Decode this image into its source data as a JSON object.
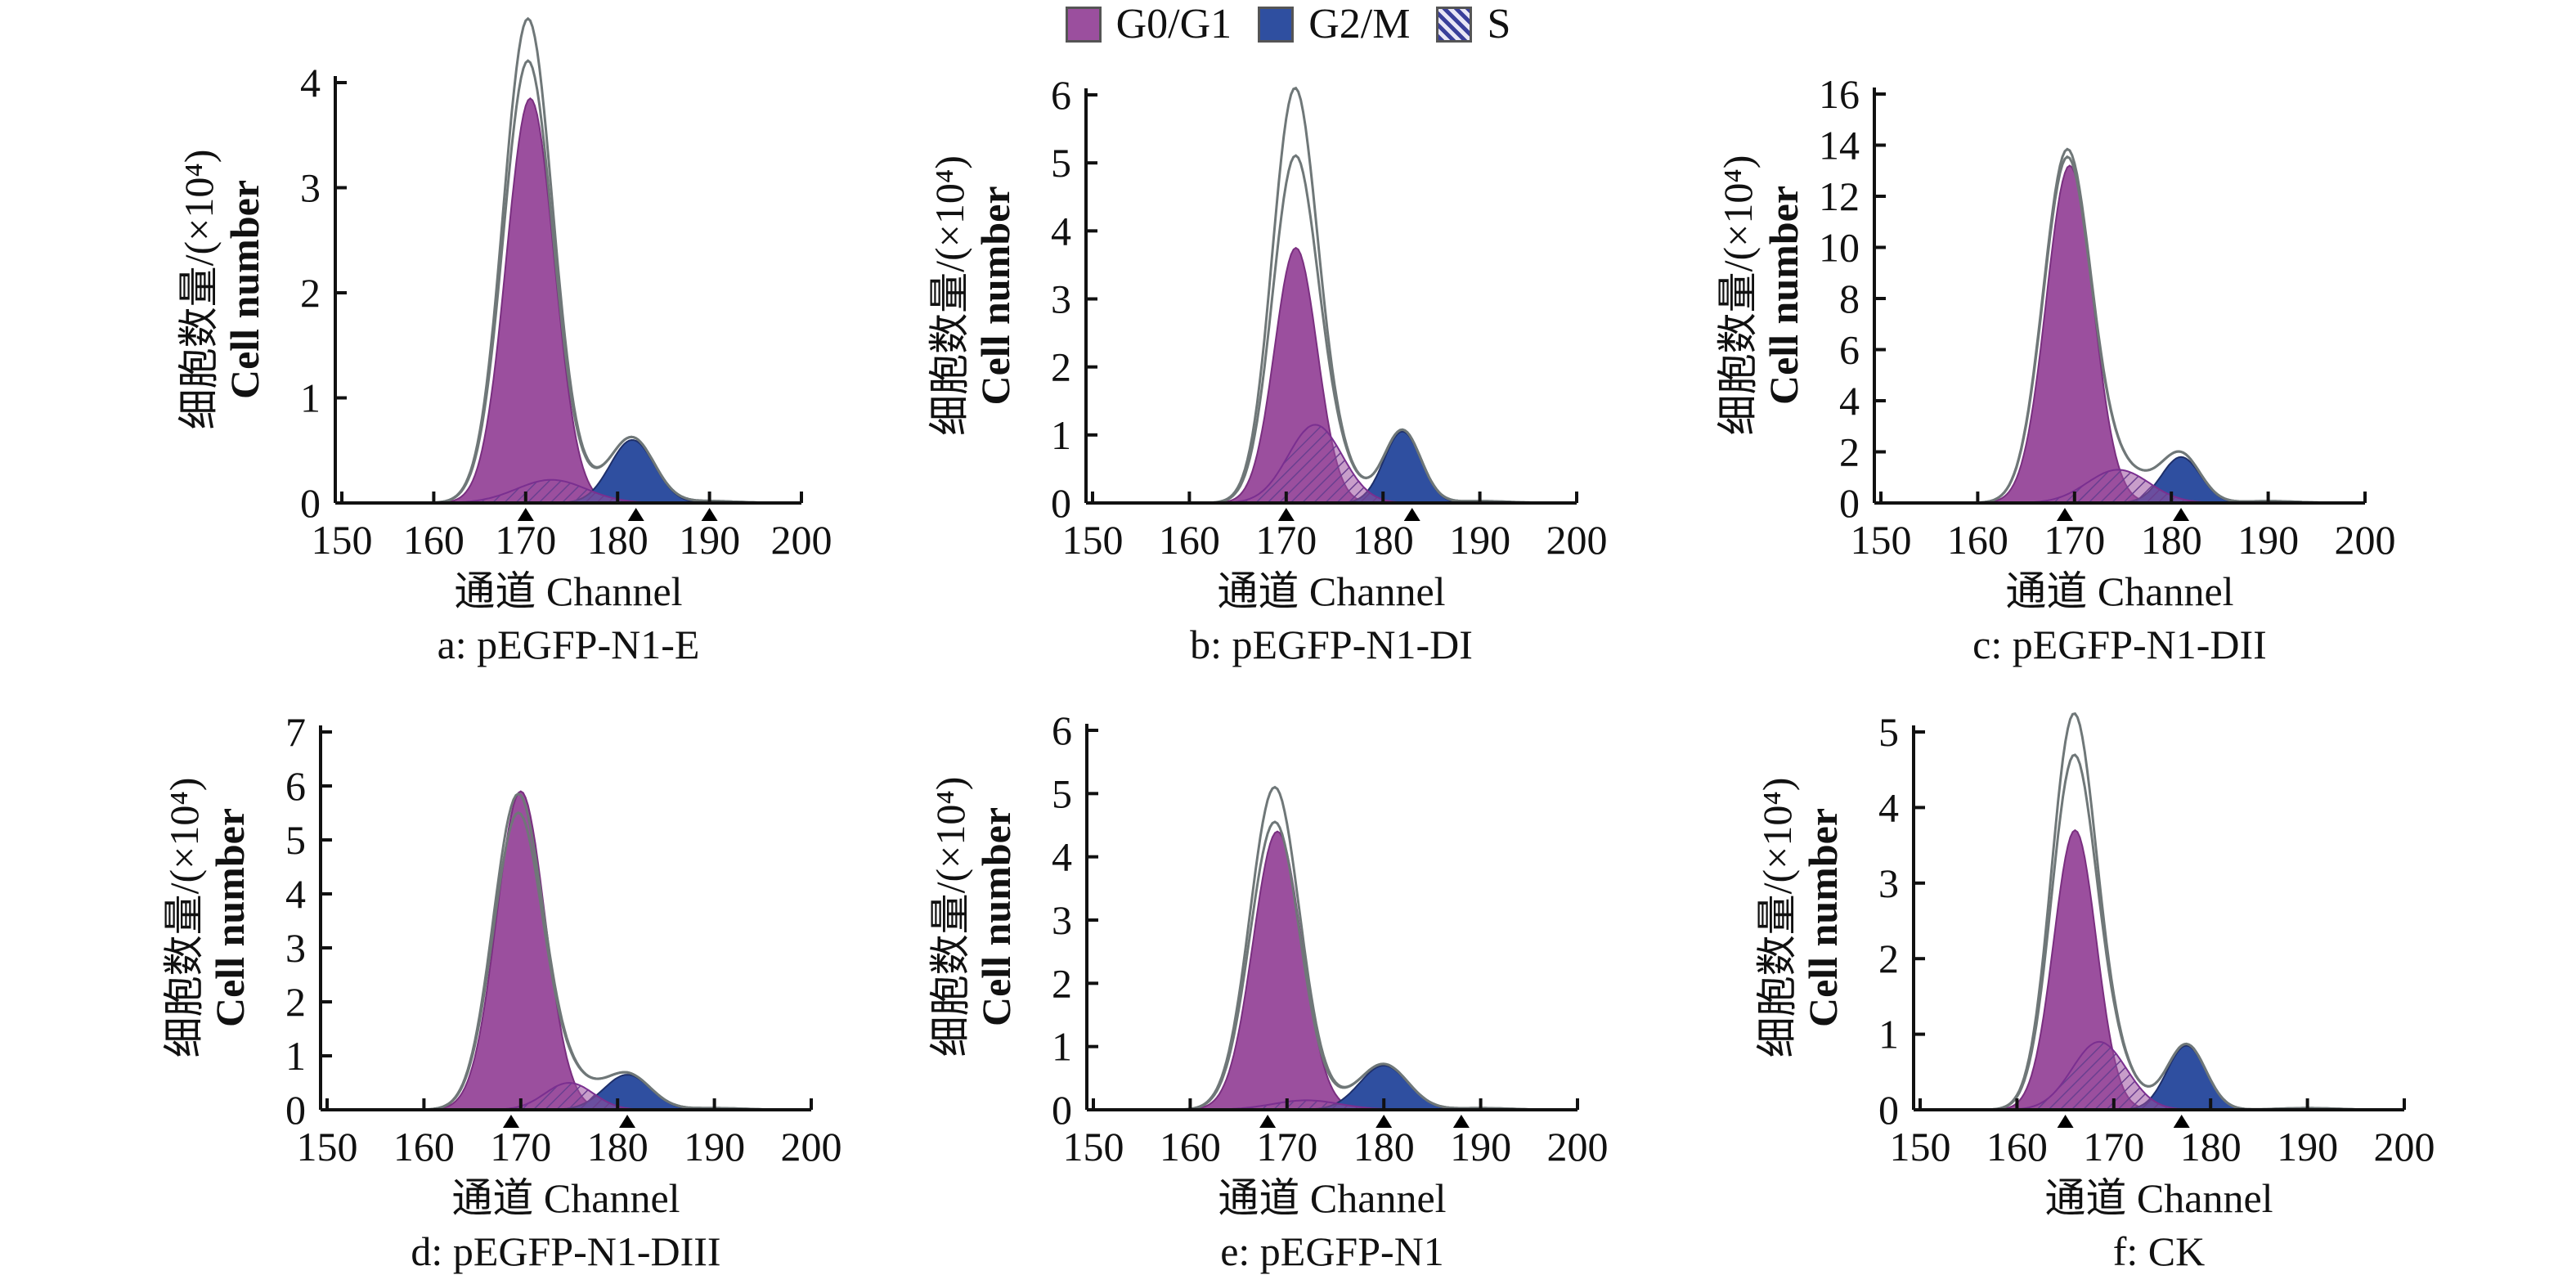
{
  "legend": [
    {
      "key": "g0g1",
      "label": "G0/G1",
      "color": "#9b4f9e"
    },
    {
      "key": "g2m",
      "label": "G2/M",
      "color": "#2f4fa0"
    },
    {
      "key": "s",
      "label": "S",
      "color": "#6a5fb0",
      "pattern": "hatched"
    }
  ],
  "colors": {
    "g0g1": "#9b4f9e",
    "g0g1_edge": "#7a2f80",
    "g2m": "#2f4fa0",
    "g2m_edge": "#1e2f6a",
    "s_hatch": "#6a3f90",
    "envelope": "#6f7778",
    "axis": "#111111"
  },
  "shared_axis_labels": {
    "ylabel_cn": "细胞数量/(×10⁴)",
    "ylabel_en": "Cell number",
    "xlabel": "通道 Channel"
  },
  "chart_data": [
    {
      "panel": "a",
      "type": "area",
      "title": "a: pEGFP-N1-E",
      "xlabel": "通道 Channel",
      "ylabel": "细胞数量/(×10⁴) Cell number",
      "xlim": [
        150,
        200
      ],
      "ylim": [
        0,
        4.5
      ],
      "xticks": [
        150,
        160,
        170,
        180,
        190,
        200
      ],
      "yticks": [
        0,
        1,
        2,
        3,
        4
      ],
      "series": [
        {
          "name": "G0/G1",
          "peak_channel": 170.5,
          "peak_height": 3.85,
          "sigma": 2.6
        },
        {
          "name": "S",
          "peak_channel": 172.8,
          "peak_height": 0.22,
          "sigma": 3.8
        },
        {
          "name": "G2/M",
          "peak_channel": 181.6,
          "peak_height": 0.6,
          "sigma": 2.4
        }
      ],
      "envelope_peaks": [
        4.5,
        4.1
      ],
      "markers": [
        170,
        182,
        190
      ]
    },
    {
      "panel": "b",
      "type": "area",
      "title": "b: pEGFP-N1-DI",
      "xlabel": "通道 Channel",
      "ylabel": "细胞数量/(×10⁴) Cell number",
      "xlim": [
        150,
        200
      ],
      "ylim": [
        0,
        6
      ],
      "xticks": [
        150,
        160,
        170,
        180,
        190,
        200
      ],
      "yticks": [
        0,
        1,
        2,
        3,
        4,
        5,
        6
      ],
      "series": [
        {
          "name": "G0/G1",
          "peak_channel": 171,
          "peak_height": 3.75,
          "sigma": 2.2
        },
        {
          "name": "S",
          "peak_channel": 173,
          "peak_height": 1.15,
          "sigma": 2.8
        },
        {
          "name": "G2/M",
          "peak_channel": 182,
          "peak_height": 1.05,
          "sigma": 1.9
        }
      ],
      "envelope_peaks": [
        5.6,
        4.6
      ],
      "markers": [
        170,
        183
      ]
    },
    {
      "panel": "c",
      "type": "area",
      "title": "c: pEGFP-N1-DII",
      "xlabel": "通道 Channel",
      "ylabel": "细胞数量/(×10⁴) Cell number",
      "xlim": [
        150,
        200
      ],
      "ylim": [
        0,
        16
      ],
      "xticks": [
        150,
        160,
        170,
        180,
        190,
        200
      ],
      "yticks": [
        0,
        2,
        4,
        6,
        8,
        10,
        12,
        14,
        16
      ],
      "series": [
        {
          "name": "G0/G1",
          "peak_channel": 169.5,
          "peak_height": 13.2,
          "sigma": 2.4
        },
        {
          "name": "S",
          "peak_channel": 174.5,
          "peak_height": 1.3,
          "sigma": 3.2
        },
        {
          "name": "G2/M",
          "peak_channel": 181,
          "peak_height": 1.8,
          "sigma": 2.0
        }
      ],
      "envelope_peaks": [
        13.9,
        13.6
      ],
      "markers": [
        169,
        181
      ]
    },
    {
      "panel": "d",
      "type": "area",
      "title": "d: pEGFP-N1-DIII",
      "xlabel": "通道 Channel",
      "ylabel": "细胞数量/(×10⁴) Cell number",
      "xlim": [
        150,
        200
      ],
      "ylim": [
        0,
        7
      ],
      "xticks": [
        150,
        160,
        170,
        180,
        190,
        200
      ],
      "yticks": [
        0,
        1,
        2,
        3,
        4,
        5,
        6,
        7
      ],
      "series": [
        {
          "name": "G0/G1",
          "peak_channel": 170,
          "peak_height": 5.9,
          "sigma": 2.5
        },
        {
          "name": "S",
          "peak_channel": 175,
          "peak_height": 0.5,
          "sigma": 2.5
        },
        {
          "name": "G2/M",
          "peak_channel": 181,
          "peak_height": 0.65,
          "sigma": 2.4
        }
      ],
      "envelope_peaks": [
        5.95,
        5.6
      ],
      "markers": [
        169,
        181
      ]
    },
    {
      "panel": "e",
      "type": "area",
      "title": "e: pEGFP-N1",
      "xlabel": "通道 Channel",
      "ylabel": "细胞数量/(×10⁴) Cell number",
      "xlim": [
        150,
        200
      ],
      "ylim": [
        0,
        6
      ],
      "xticks": [
        150,
        160,
        170,
        180,
        190,
        200
      ],
      "yticks": [
        0,
        1,
        2,
        3,
        4,
        5,
        6
      ],
      "series": [
        {
          "name": "G0/G1",
          "peak_channel": 169,
          "peak_height": 4.4,
          "sigma": 2.5
        },
        {
          "name": "S",
          "peak_channel": 172,
          "peak_height": 0.15,
          "sigma": 3.5
        },
        {
          "name": "G2/M",
          "peak_channel": 180,
          "peak_height": 0.7,
          "sigma": 2.5
        }
      ],
      "envelope_peaks": [
        5.05,
        4.5
      ],
      "markers": [
        168,
        180,
        188
      ]
    },
    {
      "panel": "f",
      "type": "area",
      "title": "f: CK",
      "xlabel": "通道 Channel",
      "ylabel": "细胞数量/(×10⁴) Cell number",
      "xlim": [
        150,
        200
      ],
      "ylim": [
        0,
        5
      ],
      "xticks": [
        150,
        160,
        170,
        180,
        190,
        200
      ],
      "yticks": [
        0,
        1,
        2,
        3,
        4,
        5
      ],
      "series": [
        {
          "name": "G0/G1",
          "peak_channel": 166,
          "peak_height": 3.7,
          "sigma": 2.2
        },
        {
          "name": "S",
          "peak_channel": 168.5,
          "peak_height": 0.9,
          "sigma": 2.8
        },
        {
          "name": "G2/M",
          "peak_channel": 177.5,
          "peak_height": 0.85,
          "sigma": 2.0
        }
      ],
      "envelope_peaks": [
        4.95,
        4.4
      ],
      "markers": [
        165,
        177
      ]
    }
  ]
}
